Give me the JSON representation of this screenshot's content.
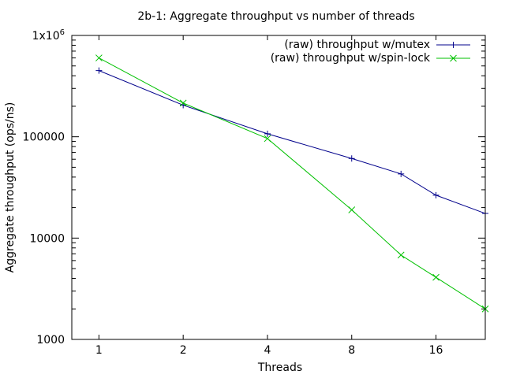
{
  "chart_data": {
    "type": "line",
    "title": "2b-1: Aggregate throughput vs number of threads",
    "xlabel": "Threads",
    "ylabel": "Aggregate throughput (ops/ns)",
    "x_scale": "log2",
    "y_scale": "log10",
    "xlim": [
      0.8,
      24
    ],
    "ylim": [
      1000,
      1000000
    ],
    "x_ticks": [
      1,
      2,
      4,
      8,
      16
    ],
    "x_tick_labels": [
      "1",
      "2",
      "4",
      "8",
      "16"
    ],
    "y_ticks": [
      1000,
      10000,
      100000,
      1000000
    ],
    "y_tick_labels": [
      "1000",
      "10000",
      "100000",
      "1x10^6"
    ],
    "legend_position": "top-right",
    "grid": false,
    "series": [
      {
        "name": "(raw) throughput w/mutex",
        "color": "#00008b",
        "marker": "plus",
        "x": [
          1,
          2,
          4,
          8,
          12,
          16,
          24
        ],
        "y": [
          450000,
          205000,
          107000,
          61000,
          43000,
          26500,
          17500
        ]
      },
      {
        "name": "(raw) throughput w/spin-lock",
        "color": "#00c000",
        "marker": "cross",
        "x": [
          1,
          2,
          4,
          8,
          12,
          16,
          24
        ],
        "y": [
          600000,
          215000,
          96000,
          19000,
          6800,
          4100,
          2000
        ]
      }
    ]
  }
}
